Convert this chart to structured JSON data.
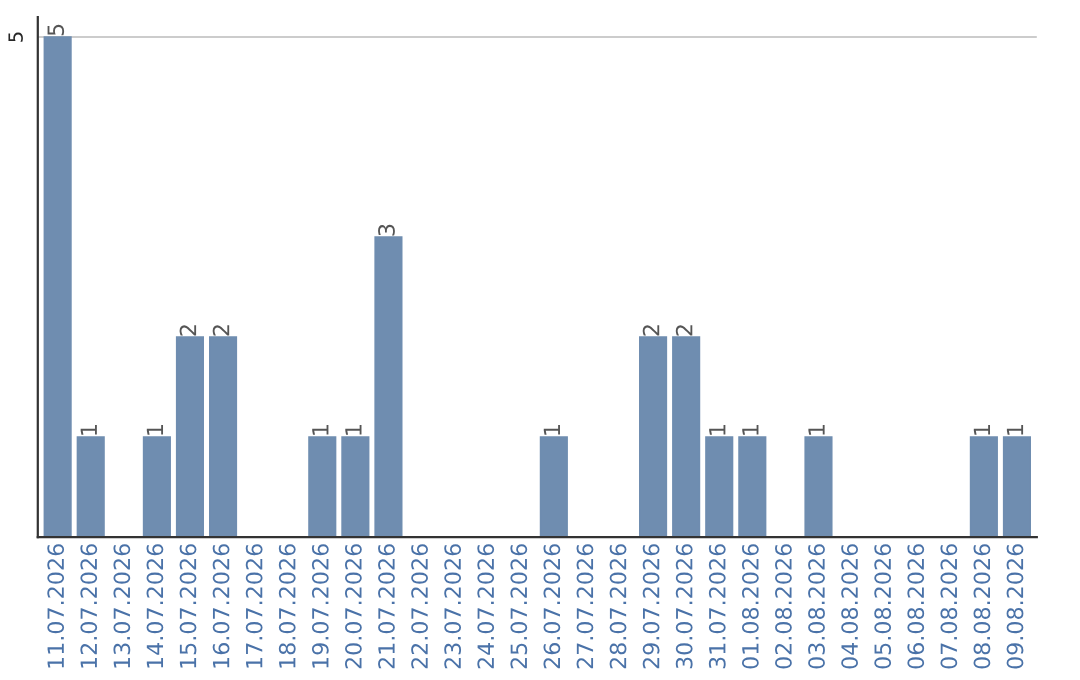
{
  "chart_data": {
    "type": "bar",
    "categories": [
      "11.07.2026",
      "12.07.2026",
      "13.07.2026",
      "14.07.2026",
      "15.07.2026",
      "16.07.2026",
      "17.07.2026",
      "18.07.2026",
      "19.07.2026",
      "20.07.2026",
      "21.07.2026",
      "22.07.2026",
      "23.07.2026",
      "24.07.2026",
      "25.07.2026",
      "26.07.2026",
      "27.07.2026",
      "28.07.2026",
      "29.07.2026",
      "30.07.2026",
      "31.07.2026",
      "01.08.2026",
      "02.08.2026",
      "03.08.2026",
      "04.08.2026",
      "05.08.2026",
      "06.08.2026",
      "07.08.2026",
      "08.08.2026",
      "09.08.2026"
    ],
    "values": [
      5,
      1,
      0,
      1,
      2,
      2,
      0,
      0,
      1,
      1,
      3,
      0,
      0,
      0,
      0,
      1,
      0,
      0,
      2,
      2,
      1,
      1,
      0,
      1,
      0,
      0,
      0,
      0,
      1,
      1
    ],
    "value_labels": [
      "5",
      "1",
      null,
      "1",
      "2",
      "2",
      null,
      null,
      "1",
      "1",
      "3",
      null,
      null,
      null,
      null,
      "1",
      null,
      null,
      "2",
      "2",
      "1",
      "1",
      null,
      "1",
      null,
      null,
      null,
      null,
      "1",
      "1"
    ],
    "color": "#6f8db0",
    "ylim": [
      0,
      5.2
    ],
    "yticks": [
      5
    ],
    "grid": "y"
  }
}
